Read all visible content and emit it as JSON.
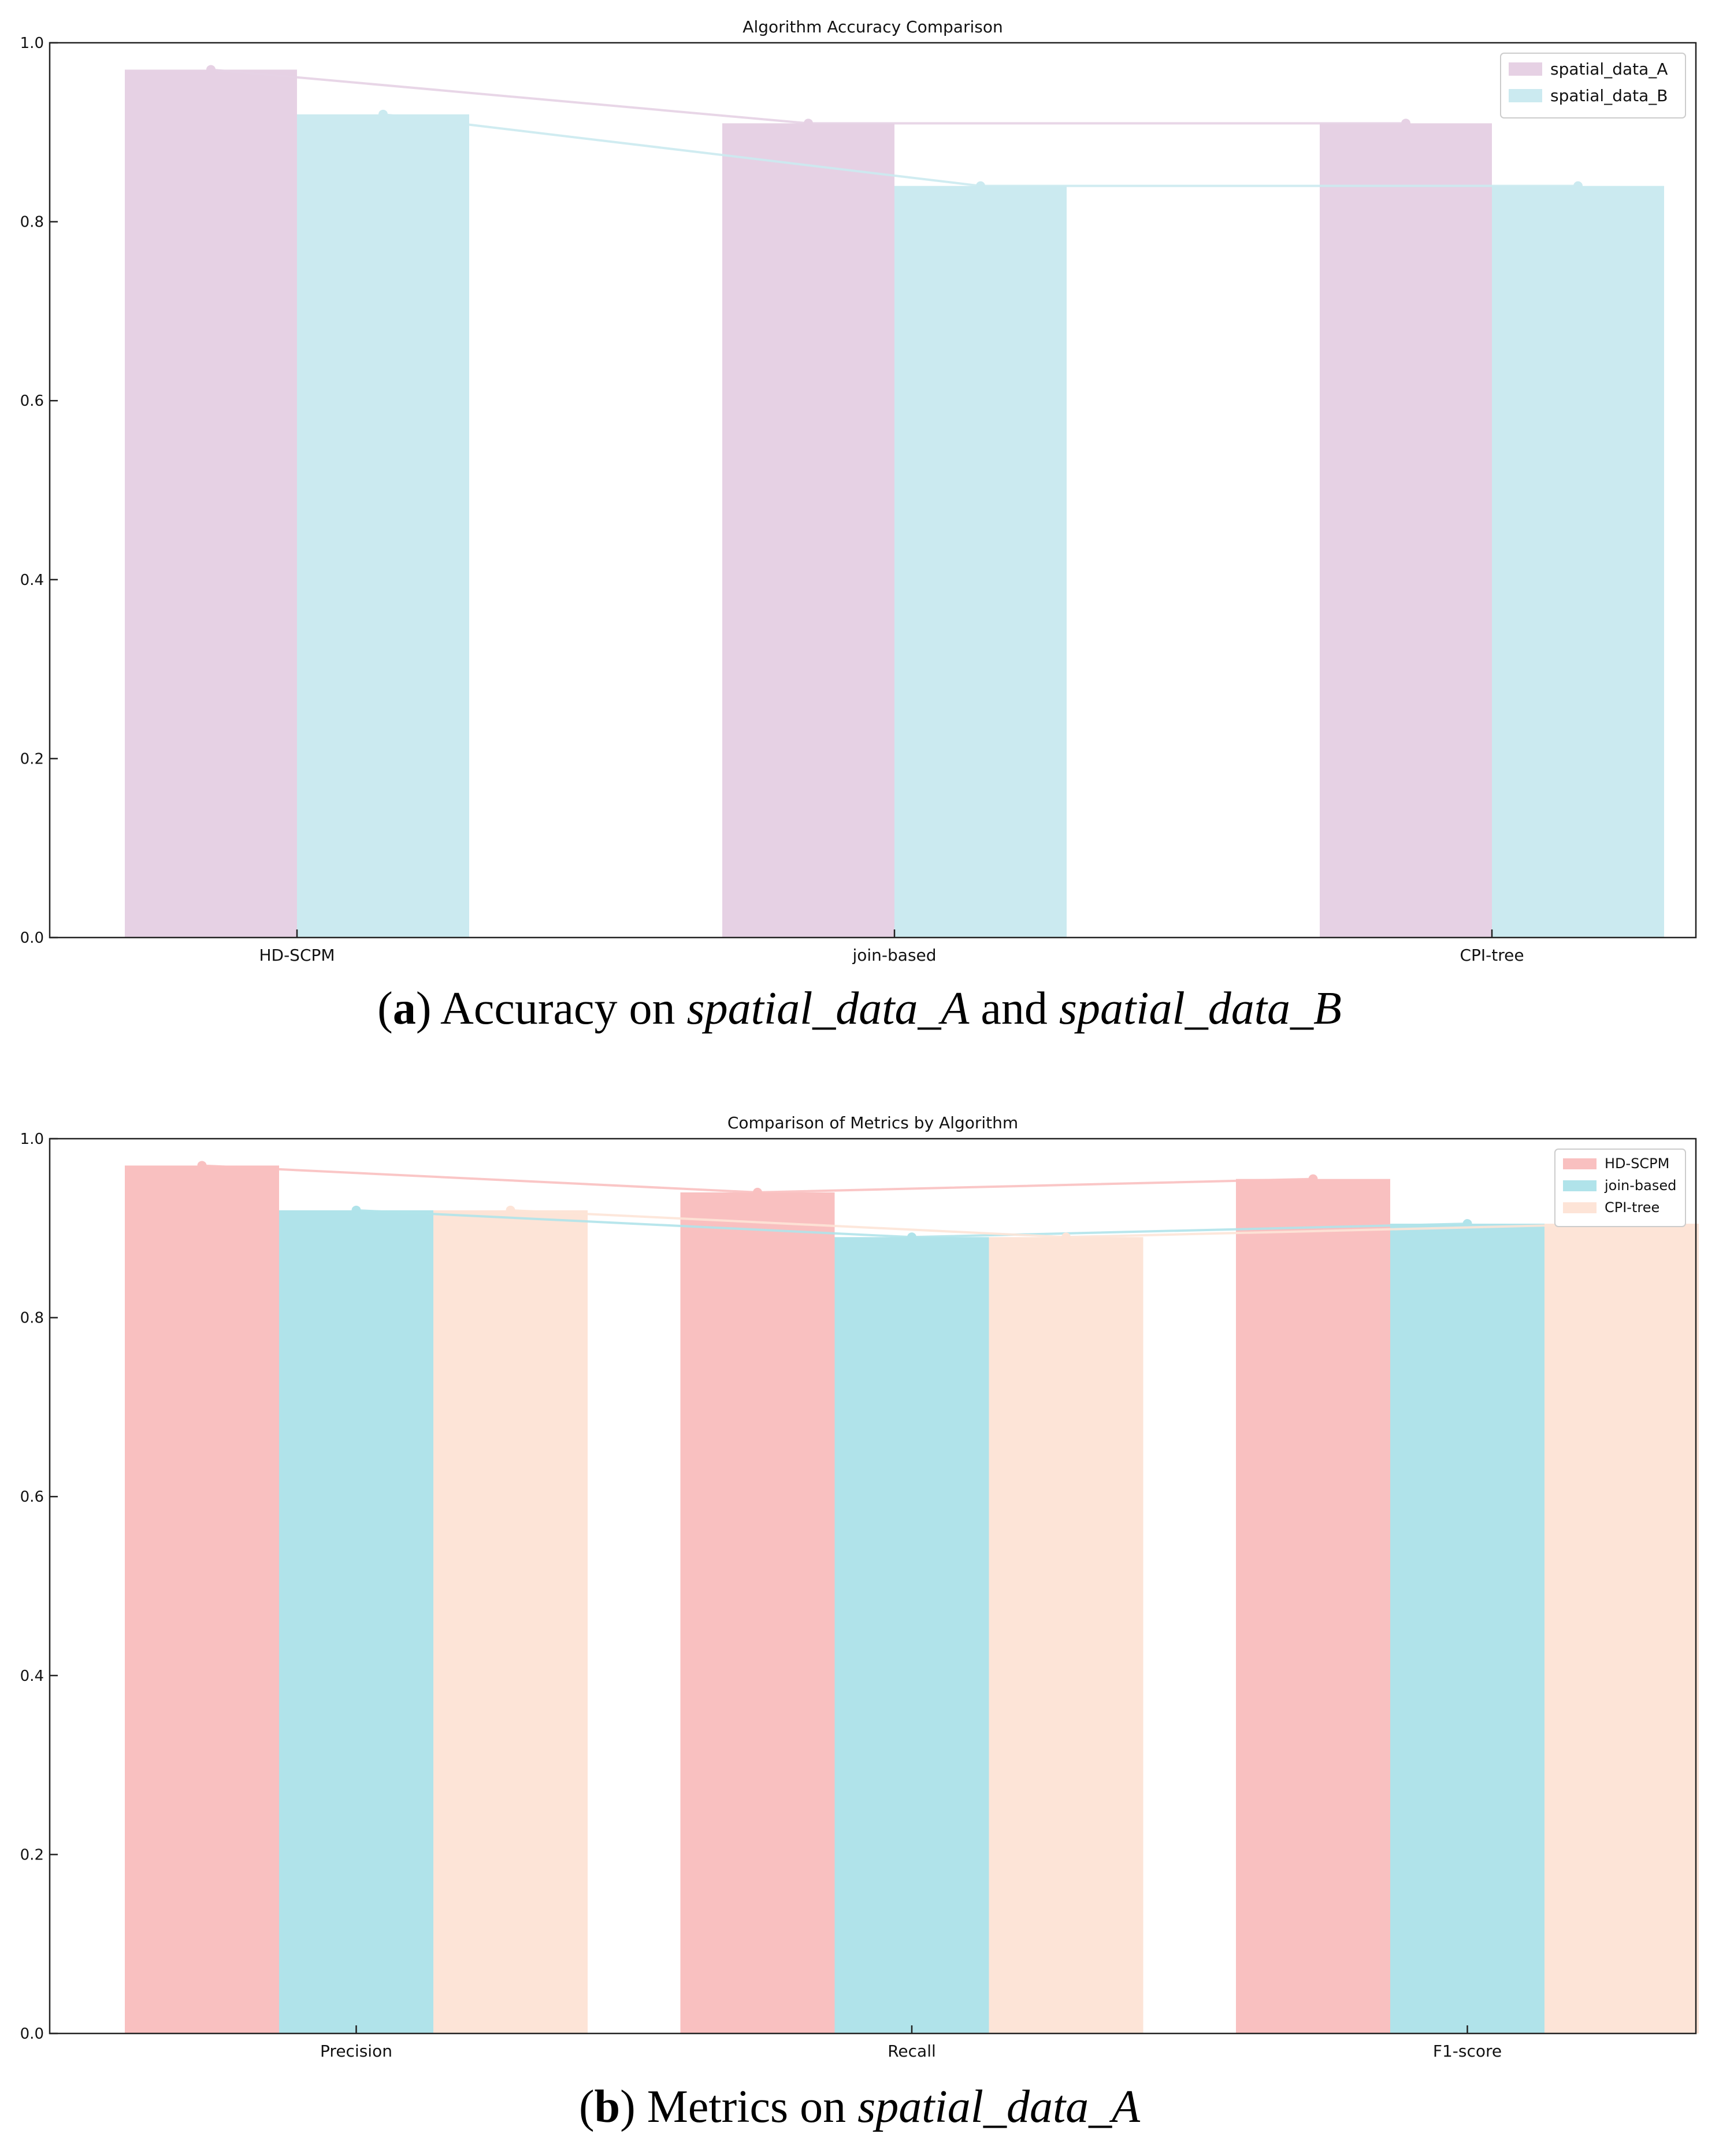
{
  "charts": [
    {
      "title": "Algorithm Accuracy Comparison",
      "xlabel": "",
      "ylabel": "",
      "y_ticks": [
        "0.0",
        "0.2",
        "0.4",
        "0.6",
        "0.8",
        "1.0"
      ],
      "legend_position": "upper right",
      "categories": [
        "HD-SCPM",
        "join-based",
        "CPI-tree"
      ]
    },
    {
      "title": "Comparison of Metrics by Algorithm",
      "xlabel": "",
      "ylabel": "",
      "y_ticks": [
        "0.0",
        "0.2",
        "0.4",
        "0.6",
        "0.8",
        "1.0"
      ],
      "legend_position": "upper right",
      "categories": [
        "Precision",
        "Recall",
        "F1-score"
      ]
    }
  ],
  "captions": {
    "a": {
      "letter": "a",
      "before": " Accuracy on ",
      "term1": "spatial_data_A",
      "middle": " and ",
      "term2": "spatial_data_B"
    },
    "b": {
      "letter": "b",
      "before": " Metrics on ",
      "term1": "spatial_data_A"
    }
  },
  "chart_data": [
    {
      "type": "bar",
      "title": "Algorithm Accuracy Comparison",
      "categories": [
        "HD-SCPM",
        "join-based",
        "CPI-tree"
      ],
      "series": [
        {
          "name": "spatial_data_A",
          "values": [
            0.97,
            0.91,
            0.91
          ],
          "color": "#e6d1e4"
        },
        {
          "name": "spatial_data_B",
          "values": [
            0.92,
            0.84,
            0.84
          ],
          "color": "#cbeaf0"
        }
      ],
      "ylim": [
        0,
        1.0
      ],
      "overlay_lines": true,
      "grid": false,
      "legend": "top-right"
    },
    {
      "type": "bar",
      "title": "Comparison of Metrics by Algorithm",
      "categories": [
        "Precision",
        "Recall",
        "F1-score"
      ],
      "series": [
        {
          "name": "HD-SCPM",
          "values": [
            0.97,
            0.94,
            0.955
          ],
          "color": "#f9c0c0"
        },
        {
          "name": "join-based",
          "values": [
            0.92,
            0.89,
            0.905
          ],
          "color": "#b0e3ea"
        },
        {
          "name": "CPI-tree",
          "values": [
            0.92,
            0.89,
            0.905
          ],
          "color": "#fde4d7"
        }
      ],
      "ylim": [
        0,
        1.0
      ],
      "overlay_lines": true,
      "grid": false,
      "legend": "top-right"
    }
  ]
}
